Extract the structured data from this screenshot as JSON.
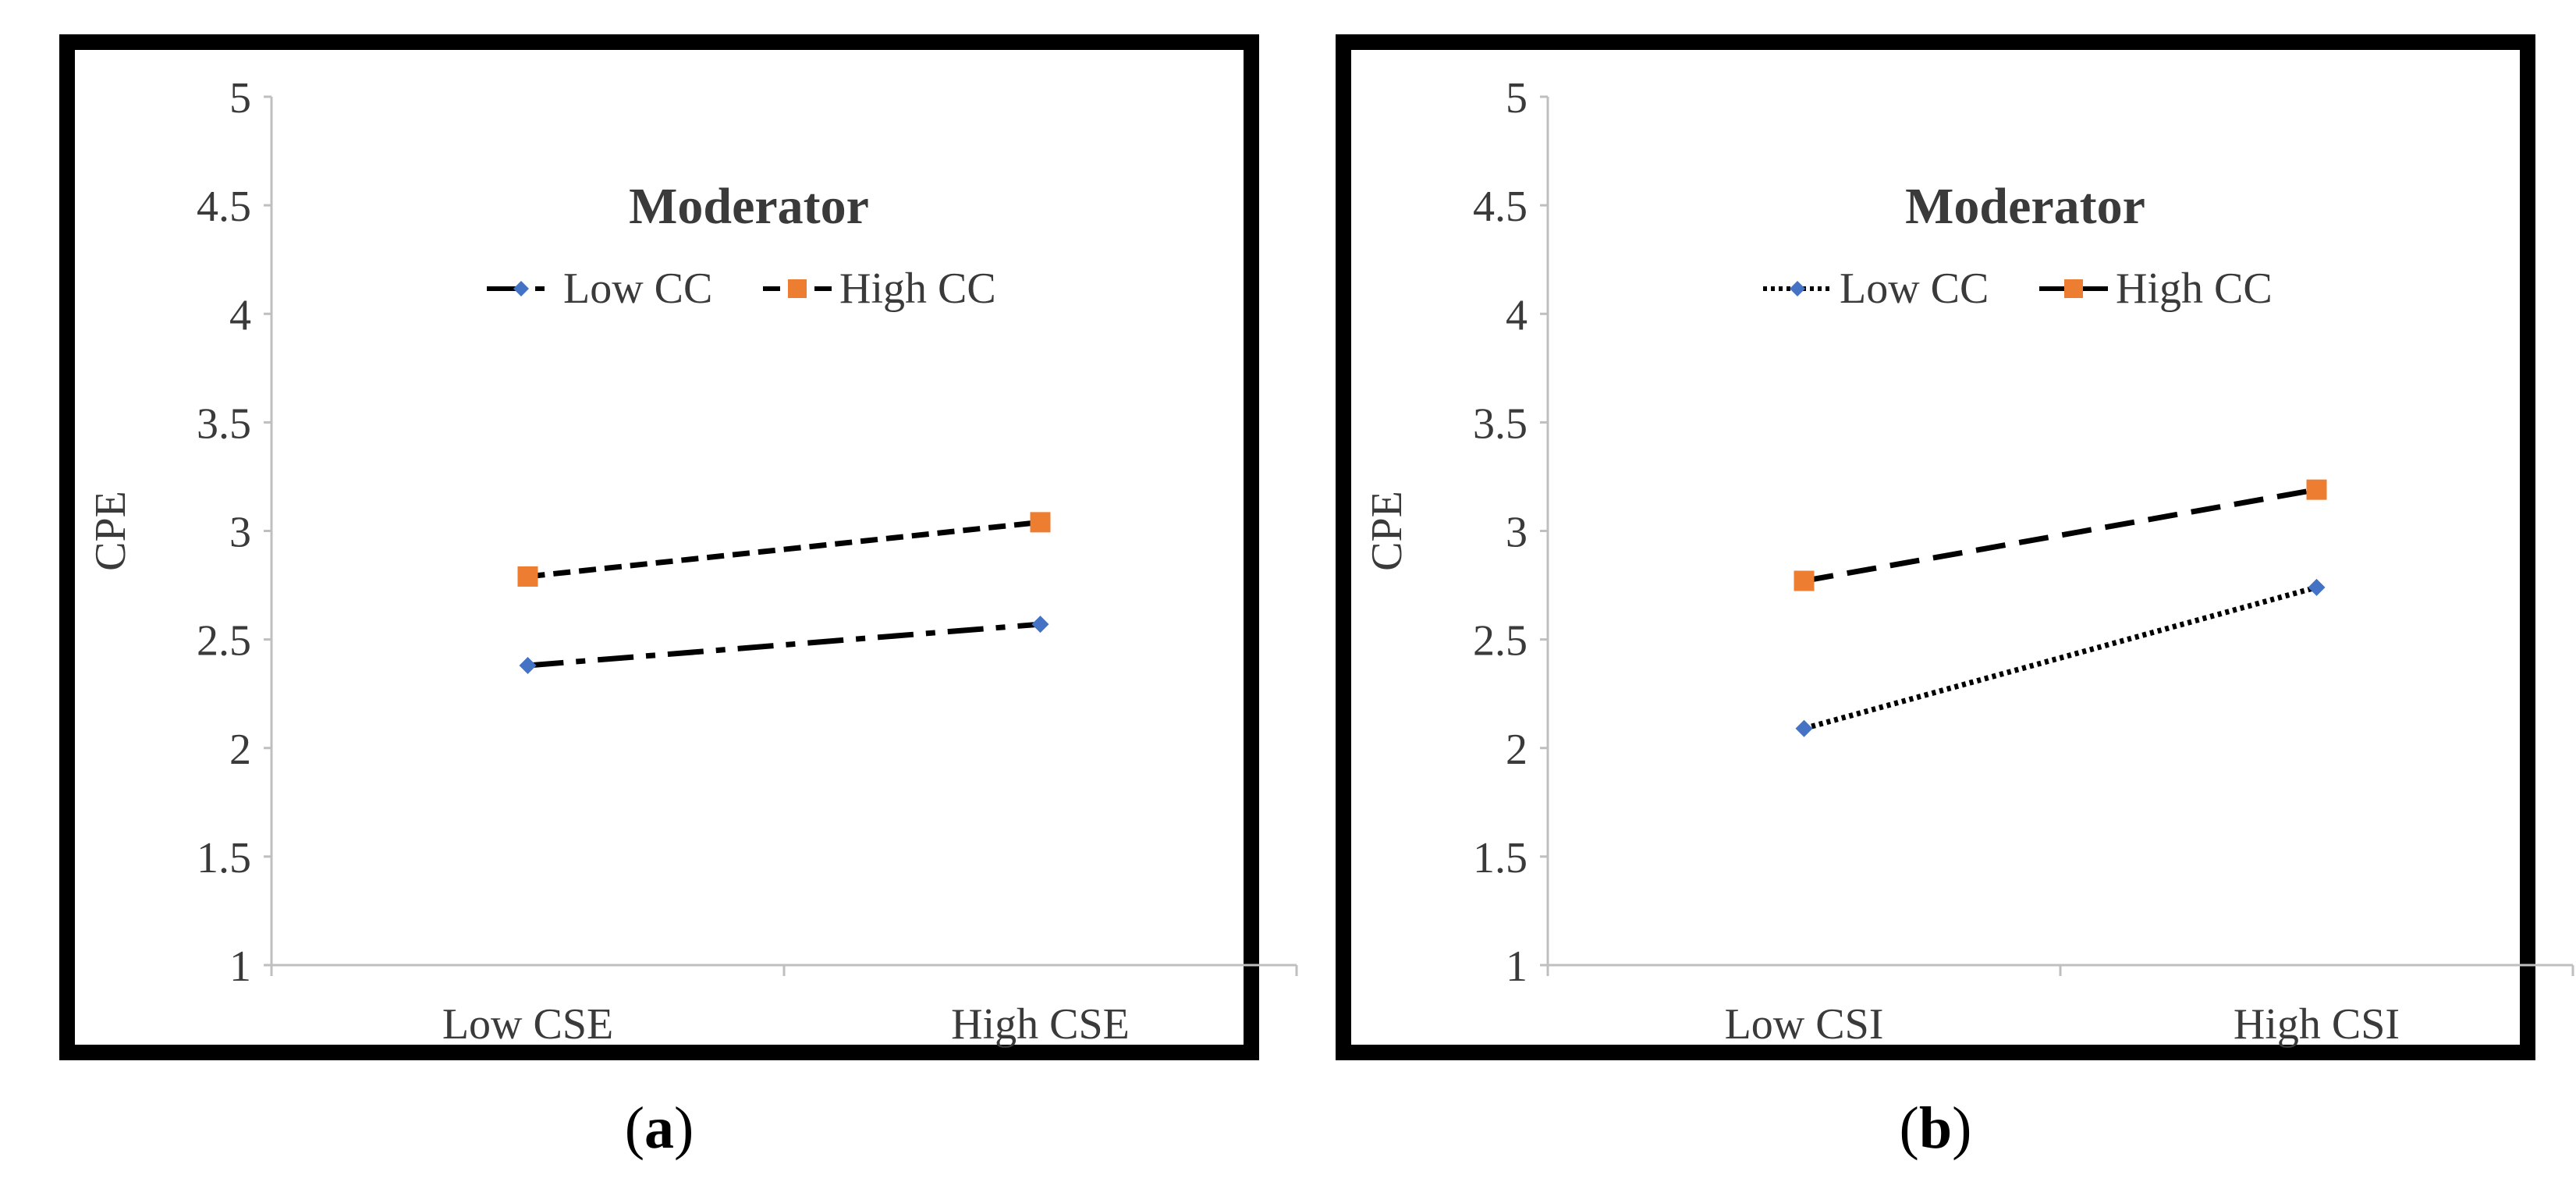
{
  "chart_data": [
    {
      "type": "line",
      "panel_label": "a",
      "title": "Moderator",
      "xlabel": "",
      "ylabel": "CPE",
      "ylim": [
        1,
        5
      ],
      "yticks": [
        "1",
        "1.5",
        "2",
        "2.5",
        "3",
        "3.5",
        "4",
        "4.5",
        "5"
      ],
      "categories": [
        "Low CSE",
        "High CSE"
      ],
      "legend_position": "top-center",
      "grid": false,
      "series": [
        {
          "name": "Low CC",
          "values": [
            2.38,
            2.57
          ],
          "line_style": "dash-dot",
          "marker": "diamond",
          "color": "#4472C4"
        },
        {
          "name": "High CC",
          "values": [
            2.79,
            3.04
          ],
          "line_style": "short-dash",
          "marker": "square",
          "color": "#ED7D31"
        }
      ]
    },
    {
      "type": "line",
      "panel_label": "b",
      "title": "Moderator",
      "xlabel": "",
      "ylabel": "CPE",
      "ylim": [
        1,
        5
      ],
      "yticks": [
        "1",
        "1.5",
        "2",
        "2.5",
        "3",
        "3.5",
        "4",
        "4.5",
        "5"
      ],
      "categories": [
        "Low CSI",
        "High CSI"
      ],
      "legend_position": "top-center",
      "grid": false,
      "series": [
        {
          "name": "Low CC",
          "values": [
            2.09,
            2.74
          ],
          "line_style": "dotted",
          "marker": "diamond",
          "color": "#4472C4"
        },
        {
          "name": "High CC",
          "values": [
            2.77,
            3.19
          ],
          "line_style": "long-dash",
          "marker": "square",
          "color": "#ED7D31"
        }
      ]
    }
  ],
  "colors": {
    "axis": "#bfbfbf",
    "line": "#000000",
    "text": "#3a3a3a"
  }
}
